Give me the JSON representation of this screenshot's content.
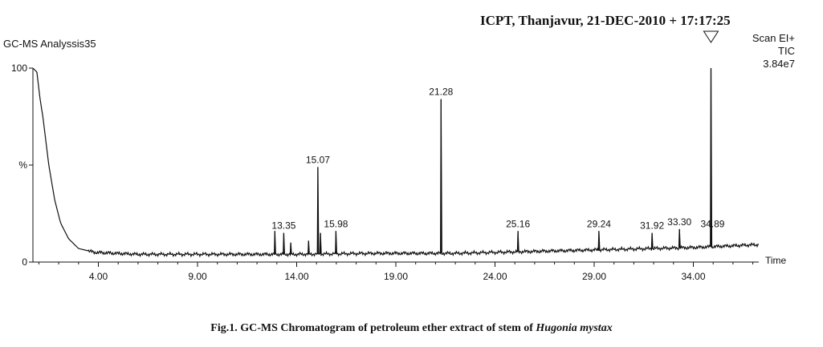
{
  "header": {
    "lab": "ICPT, Thanjavur,",
    "datetime": "21-DEC-2010 + 17:17:25"
  },
  "analysis_name": "GC-MS Analyssis35",
  "scan": {
    "mode": "Scan EI+",
    "trace": "TIC",
    "intensity": "3.84e7"
  },
  "caption": {
    "text": "Fig.1. GC-MS Chromatogram of petroleum ether extract of stem of",
    "species": "Hugonia mystax"
  },
  "chart_data": {
    "type": "line",
    "xlabel": "Time",
    "ylabel": "%",
    "xlim": [
      0.7,
      37.3
    ],
    "ylim": [
      0,
      100
    ],
    "x_ticks": [
      4.0,
      9.0,
      14.0,
      19.0,
      24.0,
      29.0,
      34.0
    ],
    "x_tick_labels": [
      "4.00",
      "9.00",
      "14.00",
      "19.00",
      "24.00",
      "29.00",
      "34.00"
    ],
    "y_ticks": [
      0,
      100
    ],
    "y_tick_labels": [
      "0",
      "100"
    ],
    "peaks": [
      {
        "rt": 12.9,
        "y": 16,
        "label": ""
      },
      {
        "rt": 13.35,
        "y": 15,
        "label": "13.35"
      },
      {
        "rt": 13.7,
        "y": 10,
        "label": ""
      },
      {
        "rt": 14.6,
        "y": 11,
        "label": ""
      },
      {
        "rt": 15.07,
        "y": 49,
        "label": "15.07"
      },
      {
        "rt": 15.2,
        "y": 15,
        "label": ""
      },
      {
        "rt": 15.98,
        "y": 16,
        "label": "15.98"
      },
      {
        "rt": 21.28,
        "y": 84,
        "label": "21.28"
      },
      {
        "rt": 25.16,
        "y": 16,
        "label": "25.16"
      },
      {
        "rt": 29.24,
        "y": 16,
        "label": "29.24"
      },
      {
        "rt": 31.92,
        "y": 15,
        "label": "31.92"
      },
      {
        "rt": 33.3,
        "y": 17,
        "label": "33.30"
      },
      {
        "rt": 34.89,
        "y": 100,
        "label": "34.89"
      }
    ],
    "baseline": [
      {
        "x": 0.7,
        "y": 100
      },
      {
        "x": 0.9,
        "y": 98
      },
      {
        "x": 1.05,
        "y": 85
      },
      {
        "x": 1.2,
        "y": 75
      },
      {
        "x": 1.5,
        "y": 50
      },
      {
        "x": 1.8,
        "y": 32
      },
      {
        "x": 2.1,
        "y": 20
      },
      {
        "x": 2.5,
        "y": 12
      },
      {
        "x": 3.0,
        "y": 7
      },
      {
        "x": 3.8,
        "y": 5
      },
      {
        "x": 6.0,
        "y": 4
      },
      {
        "x": 10.0,
        "y": 4
      },
      {
        "x": 14.0,
        "y": 4
      },
      {
        "x": 18.0,
        "y": 4.5
      },
      {
        "x": 22.0,
        "y": 4.5
      },
      {
        "x": 26.0,
        "y": 5.5
      },
      {
        "x": 30.0,
        "y": 6.5
      },
      {
        "x": 34.0,
        "y": 7.5
      },
      {
        "x": 37.3,
        "y": 9
      }
    ]
  }
}
